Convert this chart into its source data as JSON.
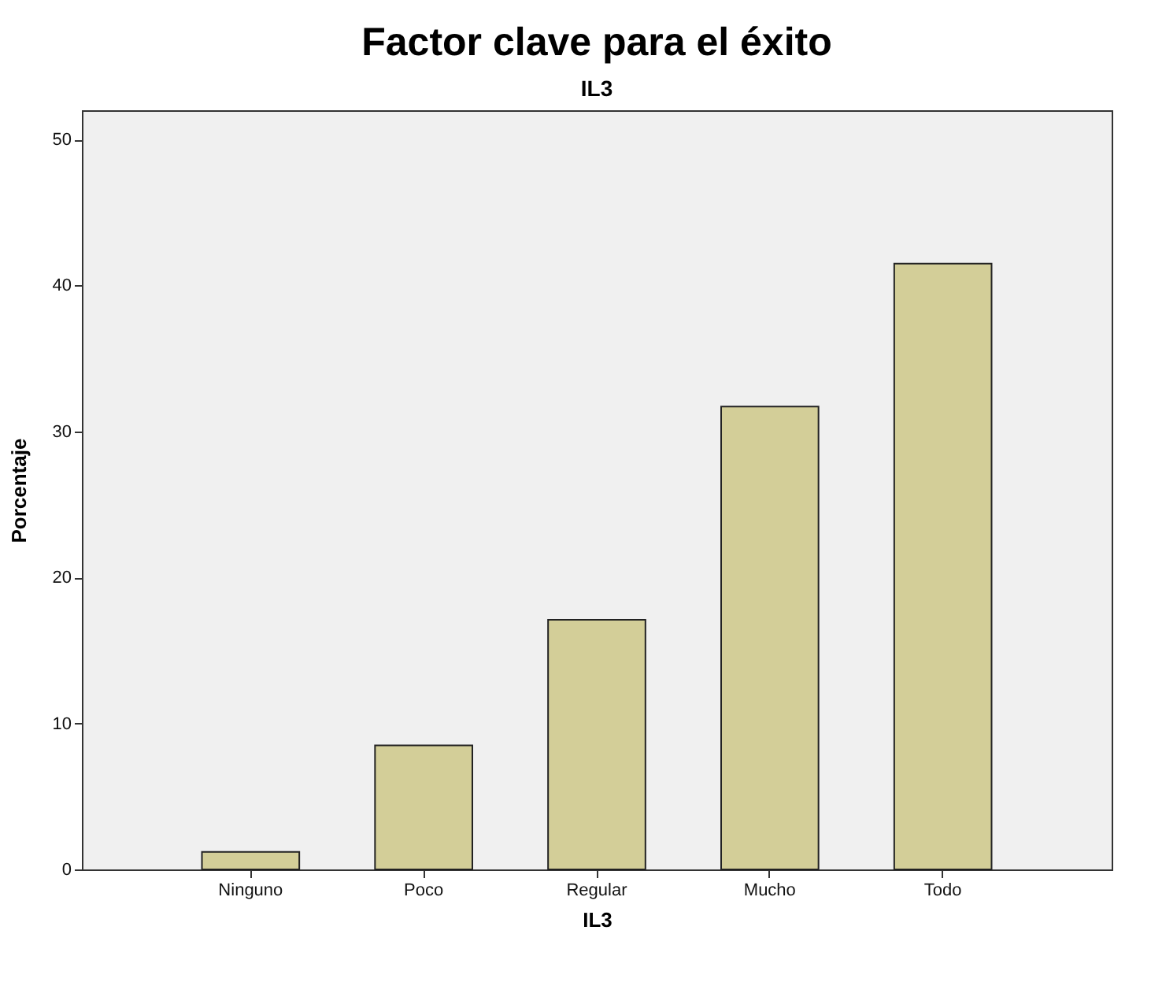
{
  "chart_data": {
    "type": "bar",
    "title": "Factor clave para el éxito",
    "subtitle": "IL3",
    "xlabel": "IL3",
    "ylabel": "Porcentaje",
    "categories": [
      "Ninguno",
      "Poco",
      "Regular",
      "Mucho",
      "Todo"
    ],
    "values": [
      1.2,
      8.5,
      17.1,
      31.7,
      41.5
    ],
    "color": "#d3ce98",
    "ylim": [
      0,
      52
    ],
    "yticks": [
      0,
      10,
      20,
      30,
      40,
      50
    ],
    "grid": false
  }
}
